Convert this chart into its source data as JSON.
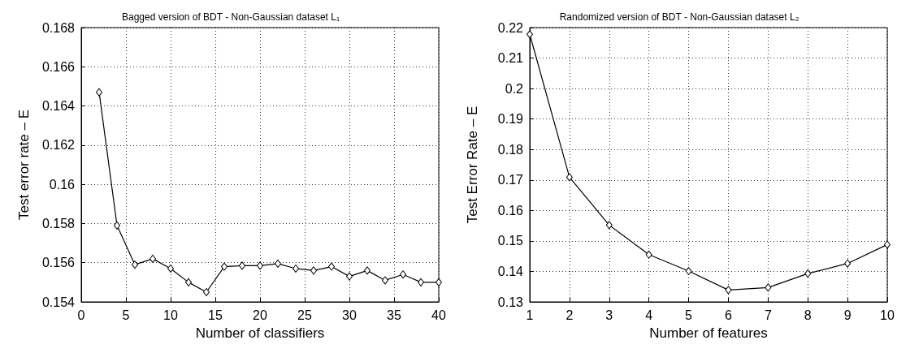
{
  "chart_data": [
    {
      "type": "line",
      "title": "Bagged version of BDT - Non-Gaussian dataset L₁",
      "xlabel": "Number of classifiers",
      "ylabel": "Test error rate – E",
      "x": [
        2,
        4,
        6,
        8,
        10,
        12,
        14,
        16,
        18,
        20,
        22,
        24,
        26,
        28,
        30,
        32,
        34,
        36,
        38,
        40
      ],
      "series": [
        {
          "color": "#000000",
          "values": [
            0.1647,
            0.1579,
            0.1559,
            0.1562,
            0.1557,
            0.155,
            0.1545,
            0.1558,
            0.15585,
            0.15585,
            0.15595,
            0.1557,
            0.1556,
            0.1558,
            0.1553,
            0.1556,
            0.1551,
            0.1554,
            0.155,
            0.155
          ]
        }
      ],
      "xlim": [
        0,
        40
      ],
      "xticks": [
        0,
        5,
        10,
        15,
        20,
        25,
        30,
        35,
        40
      ],
      "ylim": [
        0.154,
        0.168
      ],
      "yticks": [
        0.154,
        0.156,
        0.158,
        0.16,
        0.162,
        0.164,
        0.166,
        0.168
      ],
      "grid": true,
      "marker": "diamond",
      "line_style": "solid"
    },
    {
      "type": "line",
      "title": "Randomized version of BDT - Non-Gaussian dataset L₂",
      "xlabel": "Number of features",
      "ylabel": "Test Error Rate – E",
      "x": [
        1,
        2,
        3,
        4,
        5,
        6,
        7,
        8,
        9,
        10
      ],
      "series": [
        {
          "color": "#000000",
          "values": [
            0.2178,
            0.1709,
            0.1552,
            0.1455,
            0.1401,
            0.1339,
            0.1347,
            0.1393,
            0.1426,
            0.1488
          ]
        }
      ],
      "xlim": [
        1,
        10
      ],
      "xticks": [
        1,
        2,
        3,
        4,
        5,
        6,
        7,
        8,
        9,
        10
      ],
      "ylim": [
        0.13,
        0.22
      ],
      "yticks": [
        0.13,
        0.14,
        0.15,
        0.16,
        0.17,
        0.18,
        0.19,
        0.2,
        0.21,
        0.22
      ],
      "grid": true,
      "marker": "diamond",
      "line_style": "solid"
    }
  ]
}
